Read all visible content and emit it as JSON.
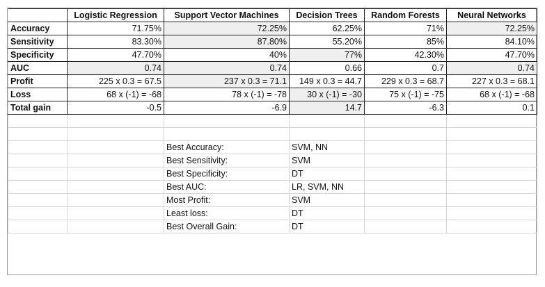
{
  "table": {
    "columns": [
      "Logistic Regression",
      "Support Vector Machines",
      "Decision Trees",
      "Random Forests",
      "Neural Networks"
    ],
    "rows": [
      {
        "label": "Accuracy",
        "values": [
          "71.75%",
          "72.25%",
          "62.25%",
          "71%",
          "72.25%"
        ],
        "shaded": [
          false,
          true,
          false,
          false,
          true
        ]
      },
      {
        "label": "Sensitivity",
        "values": [
          "83.30%",
          "87.80%",
          "55.20%",
          "85%",
          "84.10%"
        ],
        "shaded": [
          false,
          true,
          false,
          false,
          false
        ]
      },
      {
        "label": "Specificity",
        "values": [
          "47.70%",
          "40%",
          "77%",
          "42.30%",
          "47.70%"
        ],
        "shaded": [
          false,
          false,
          true,
          false,
          false
        ]
      },
      {
        "label": "AUC",
        "values": [
          "0.74",
          "0.74",
          "0.66",
          "0.7",
          "0.74"
        ],
        "shaded": [
          true,
          true,
          false,
          false,
          true
        ]
      },
      {
        "label": "Profit",
        "values": [
          "225 x 0.3 = 67.5",
          "237 x 0.3 = 71.1",
          "149 x 0.3 = 44.7",
          "229 x 0.3 = 68.7",
          "227 x 0.3 = 68.1"
        ],
        "shaded": [
          false,
          true,
          false,
          false,
          false
        ]
      },
      {
        "label": "Loss",
        "values": [
          "68 x (-1) = -68",
          "78 x (-1) = -78",
          "30 x (-1) = -30",
          "75 x (-1) = -75",
          "68 x (-1) = -68"
        ],
        "shaded": [
          false,
          false,
          true,
          false,
          false
        ]
      },
      {
        "label": "Total gain",
        "values": [
          "-0.5",
          "-6.9",
          "14.7",
          "-6.3",
          "0.1"
        ],
        "shaded": [
          false,
          false,
          true,
          false,
          false
        ]
      }
    ]
  },
  "summary": [
    {
      "label": "Best Accuracy:",
      "value": "SVM, NN"
    },
    {
      "label": "Best Sensitivity:",
      "value": "SVM"
    },
    {
      "label": "Best Specificity:",
      "value": "DT"
    },
    {
      "label": "Best AUC:",
      "value": "LR, SVM, NN"
    },
    {
      "label": "Most Profit:",
      "value": "SVM"
    },
    {
      "label": "Least loss:",
      "value": "DT"
    },
    {
      "label": "Best Overall Gain:",
      "value": "DT"
    }
  ]
}
